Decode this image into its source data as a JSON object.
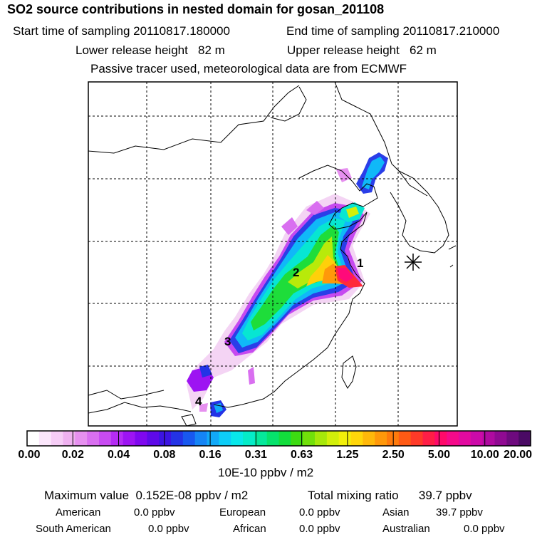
{
  "header": {
    "title": "SO2 source contributions in nested domain for gosan_201108",
    "start": "Start time of sampling 20110817.180000",
    "end": "End time of sampling 20110817.210000",
    "lower": "Lower release height   82 m",
    "upper": "Upper release height   62 m",
    "note": "Passive tracer used, meteorological data are from ECMWF"
  },
  "map": {
    "source_labels": [
      "1",
      "2",
      "3",
      "4"
    ],
    "receptor_marker": "star"
  },
  "colorbar": {
    "ticks": [
      "0.00",
      "0.02",
      "0.04",
      "0.08",
      "0.16",
      "0.31",
      "0.63",
      "1.25",
      "2.50",
      "5.00",
      "10.00",
      "20.00"
    ],
    "unit": "10E-10 ppbv / m2",
    "colors": [
      "#ffffff",
      "#fbe6fb",
      "#f6cdf6",
      "#efb1f0",
      "#e690ef",
      "#d96ff0",
      "#c84bf2",
      "#b52cf4",
      "#9d14f2",
      "#7f08ee",
      "#5e0ae8",
      "#3c14e2",
      "#2433e6",
      "#1858ef",
      "#1584f5",
      "#12a9f8",
      "#0dcdf7",
      "#08e8ea",
      "#05ecc8",
      "#05e89b",
      "#06e26c",
      "#12dd3c",
      "#3ddb12",
      "#72e00a",
      "#a6e80a",
      "#d2ef0a",
      "#f2f00a",
      "#ffd60a",
      "#ffb80a",
      "#ff980a",
      "#ff7a0c",
      "#ff5a14",
      "#ff3a28",
      "#ff1e46",
      "#ff0a6a",
      "#f50a8a",
      "#e20aa0",
      "#cc0aa8",
      "#b00aa0",
      "#900a92",
      "#6e0a7e",
      "#4a0a64"
    ]
  },
  "footer": {
    "max_value": "Maximum value  0.152E-08 ppbv / m2",
    "total": "Total mixing ratio      39.7 ppbv",
    "american": "American",
    "american_val": "0.0 ppbv",
    "european": "European",
    "european_val": "0.0 ppbv",
    "asian": "Asian",
    "asian_val": "39.7 ppbv",
    "south_american": "South American",
    "south_american_val": "0.0 ppbv",
    "african": "African",
    "african_val": "0.0 ppbv",
    "australian": "Australian",
    "australian_val": "0.0 ppbv"
  }
}
